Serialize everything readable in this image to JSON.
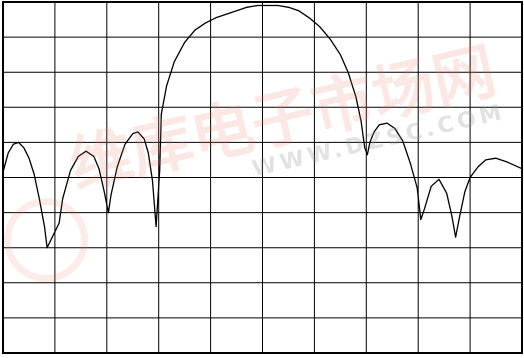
{
  "chart_data": {
    "type": "line",
    "title": "",
    "xlabel": "",
    "ylabel": "",
    "grid": true,
    "grid_divisions": {
      "x": 10,
      "y": 10
    },
    "xlim": [
      0,
      10
    ],
    "ylim": [
      0,
      10
    ],
    "series": [
      {
        "color": "#000000",
        "points": [
          [
            0.0,
            5.15
          ],
          [
            0.1,
            5.7
          ],
          [
            0.2,
            5.95
          ],
          [
            0.3,
            6.0
          ],
          [
            0.4,
            5.85
          ],
          [
            0.5,
            5.55
          ],
          [
            0.6,
            5.1
          ],
          [
            0.7,
            4.4
          ],
          [
            0.8,
            3.6
          ],
          [
            0.85,
            3.0
          ],
          [
            1.08,
            3.7
          ],
          [
            1.15,
            4.4
          ],
          [
            1.3,
            5.2
          ],
          [
            1.45,
            5.6
          ],
          [
            1.6,
            5.75
          ],
          [
            1.75,
            5.6
          ],
          [
            1.85,
            5.25
          ],
          [
            1.95,
            4.6
          ],
          [
            2.03,
            4.0
          ],
          [
            2.08,
            4.5
          ],
          [
            2.2,
            5.3
          ],
          [
            2.35,
            5.95
          ],
          [
            2.5,
            6.25
          ],
          [
            2.6,
            6.3
          ],
          [
            2.72,
            6.1
          ],
          [
            2.8,
            5.7
          ],
          [
            2.88,
            4.9
          ],
          [
            2.95,
            3.6
          ],
          [
            3.02,
            5.2
          ],
          [
            3.05,
            6.8
          ],
          [
            3.15,
            7.6
          ],
          [
            3.3,
            8.3
          ],
          [
            3.5,
            8.85
          ],
          [
            3.7,
            9.2
          ],
          [
            3.9,
            9.4
          ],
          [
            4.1,
            9.55
          ],
          [
            4.3,
            9.65
          ],
          [
            4.5,
            9.75
          ],
          [
            4.7,
            9.85
          ],
          [
            4.9,
            9.9
          ],
          [
            5.1,
            9.9
          ],
          [
            5.3,
            9.9
          ],
          [
            5.5,
            9.85
          ],
          [
            5.7,
            9.75
          ],
          [
            5.9,
            9.55
          ],
          [
            6.1,
            9.3
          ],
          [
            6.3,
            8.95
          ],
          [
            6.5,
            8.5
          ],
          [
            6.65,
            8.0
          ],
          [
            6.8,
            7.3
          ],
          [
            6.9,
            6.6
          ],
          [
            6.97,
            5.85
          ],
          [
            7.02,
            5.65
          ],
          [
            7.07,
            6.0
          ],
          [
            7.15,
            6.3
          ],
          [
            7.25,
            6.5
          ],
          [
            7.4,
            6.55
          ],
          [
            7.55,
            6.4
          ],
          [
            7.7,
            6.05
          ],
          [
            7.85,
            5.4
          ],
          [
            7.98,
            4.7
          ],
          [
            8.05,
            3.8
          ],
          [
            8.12,
            4.1
          ],
          [
            8.25,
            4.75
          ],
          [
            8.4,
            4.95
          ],
          [
            8.55,
            4.55
          ],
          [
            8.65,
            3.9
          ],
          [
            8.72,
            3.3
          ],
          [
            8.8,
            3.9
          ],
          [
            8.9,
            4.6
          ],
          [
            9.0,
            5.0
          ],
          [
            9.15,
            5.3
          ],
          [
            9.3,
            5.5
          ],
          [
            9.5,
            5.55
          ],
          [
            9.7,
            5.45
          ],
          [
            9.85,
            5.35
          ],
          [
            10.0,
            5.25
          ]
        ]
      }
    ]
  },
  "watermark": {
    "main_text": "维库电子市场网",
    "url_text": "WWW.DZSC.COM"
  }
}
